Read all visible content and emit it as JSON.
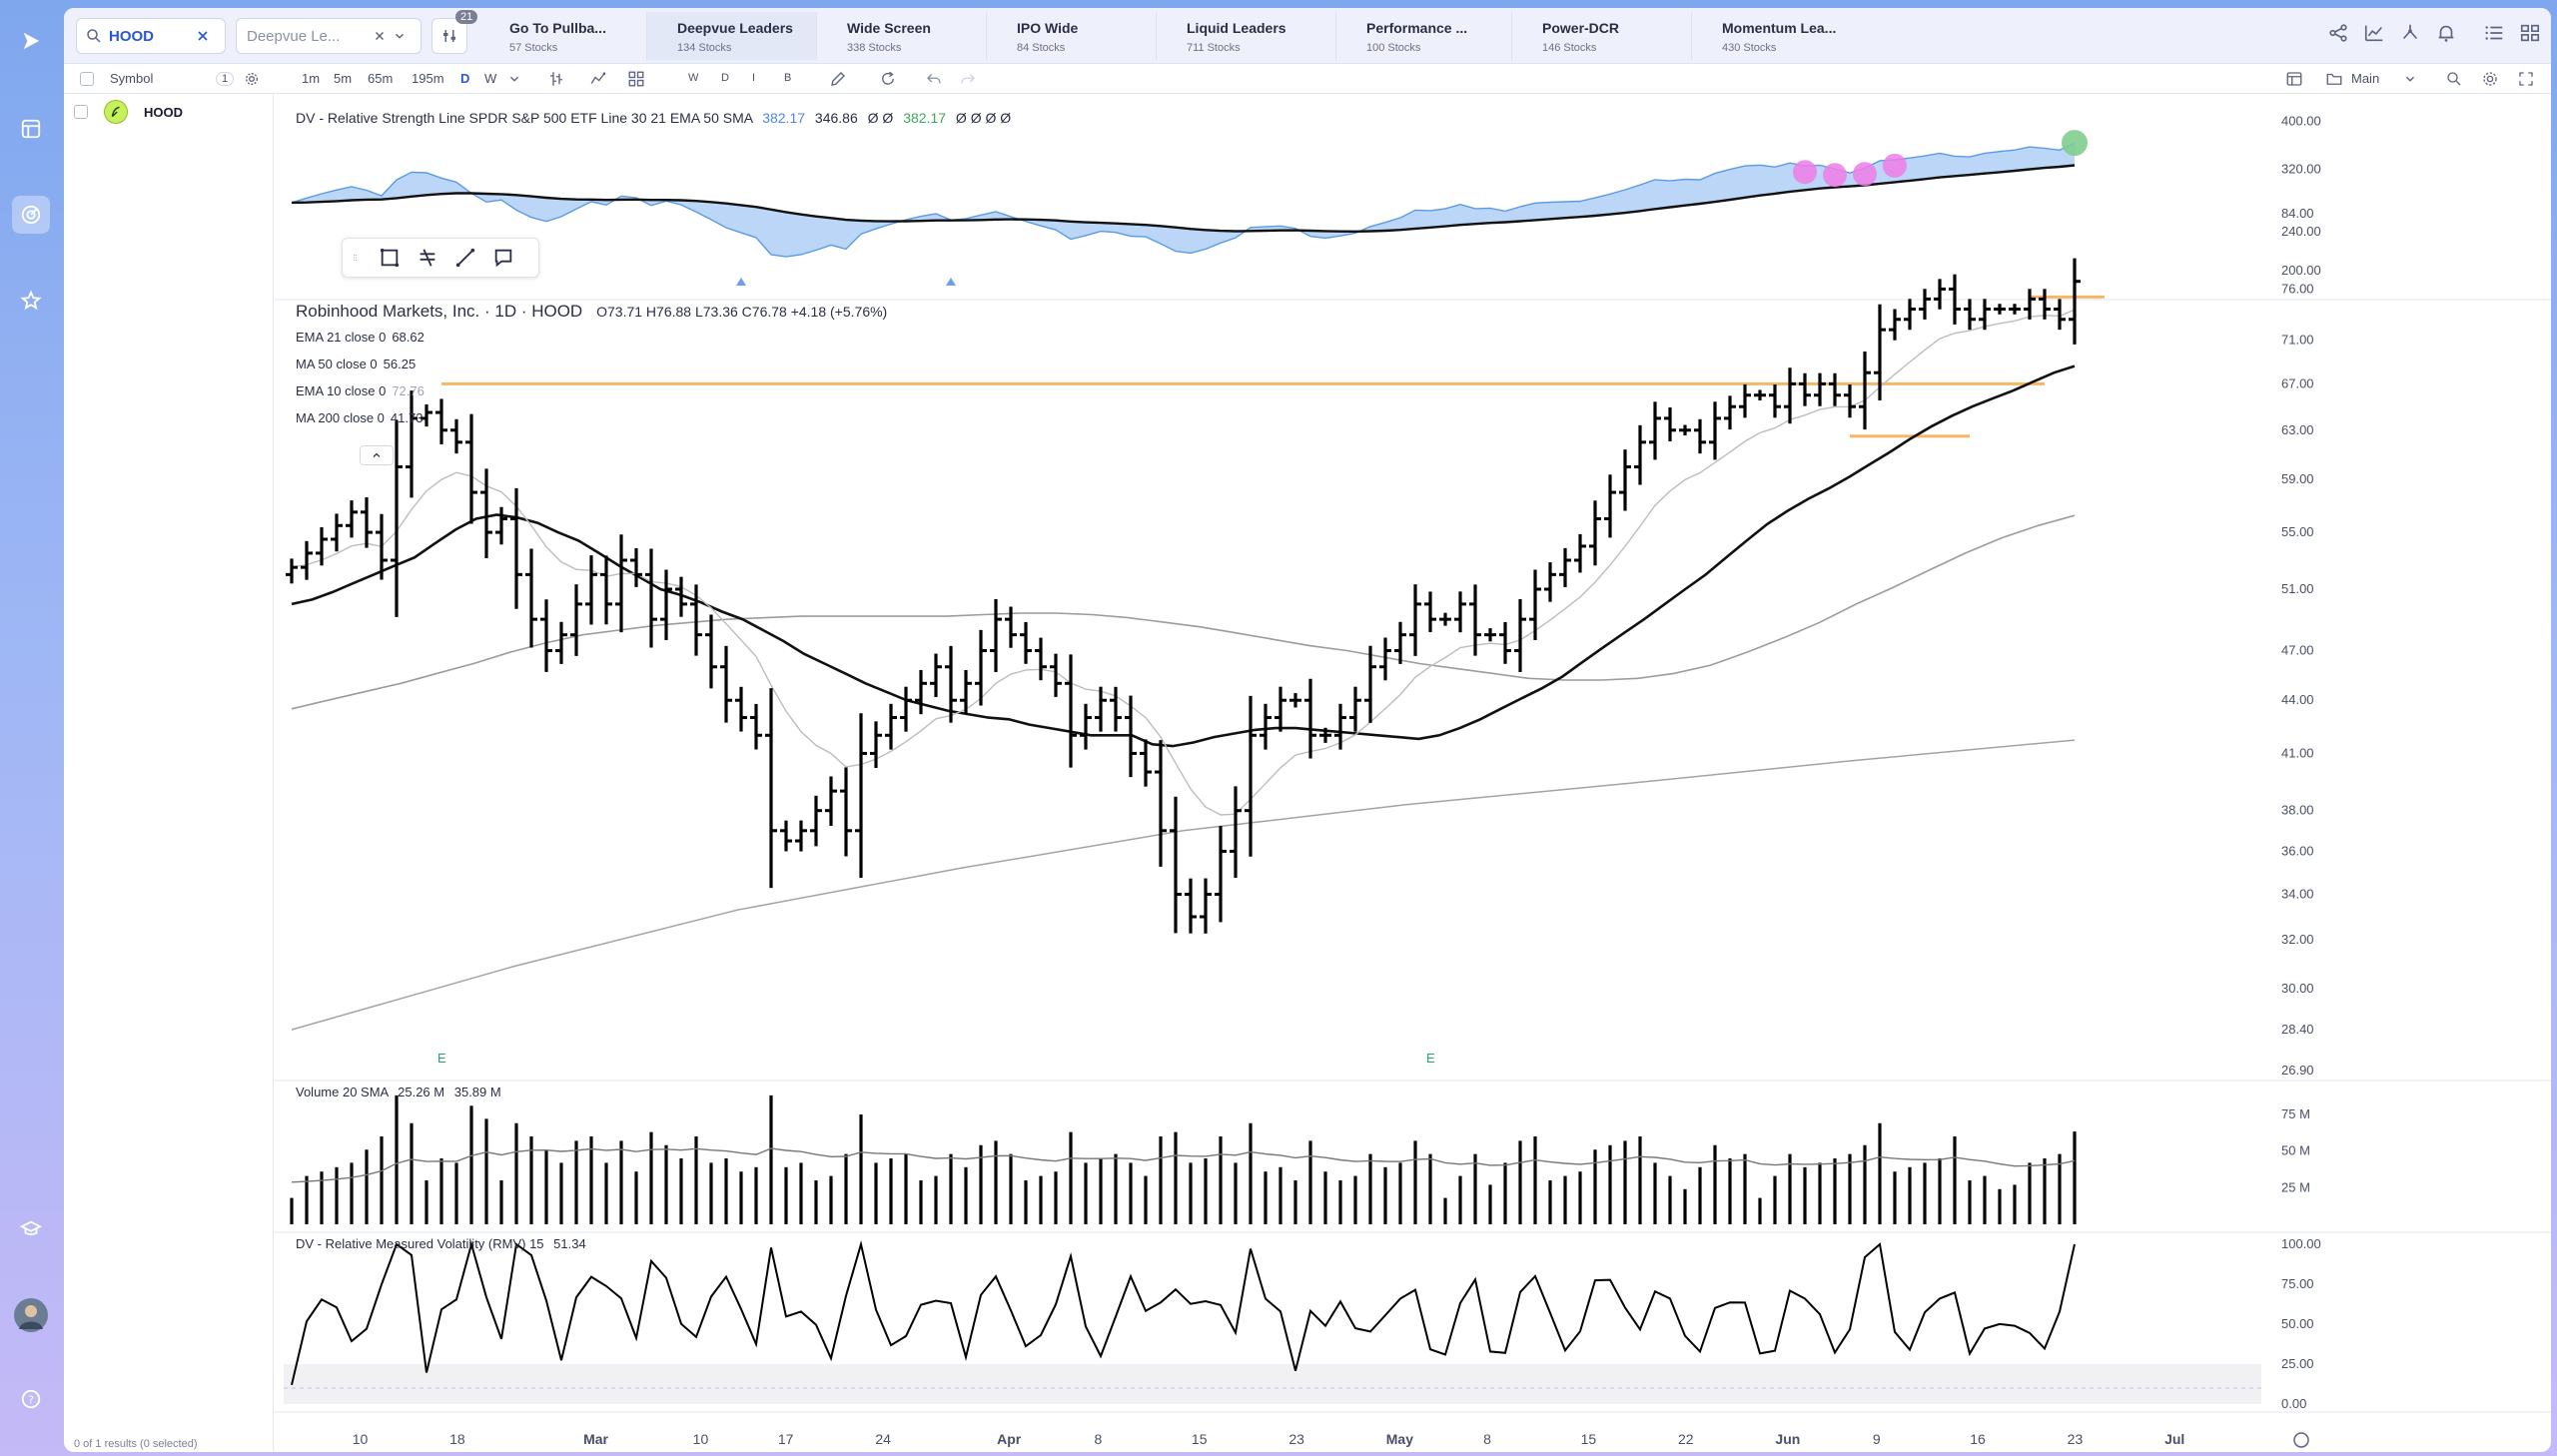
{
  "search": {
    "value": "HOOD"
  },
  "watchlist": {
    "selected": "Deepvue Le..."
  },
  "filter_badge": "21",
  "tabs": [
    {
      "title": "Go To Pullba...",
      "count": "57 Stocks"
    },
    {
      "title": "Deepvue Leaders",
      "count": "134 Stocks"
    },
    {
      "title": "Wide Screen",
      "count": "338 Stocks"
    },
    {
      "title": "IPO Wide",
      "count": "84 Stocks"
    },
    {
      "title": "Liquid Leaders",
      "count": "711 Stocks"
    },
    {
      "title": "Performance ...",
      "count": "100 Stocks"
    },
    {
      "title": "Power-DCR",
      "count": "146 Stocks"
    },
    {
      "title": "Momentum Lea...",
      "count": "430 Stocks"
    }
  ],
  "toolbar": {
    "symbol_label": "Symbol",
    "symbol_count": "1",
    "intervals": [
      "1m",
      "5m",
      "65m",
      "195m",
      "D",
      "W"
    ],
    "active_interval": "D",
    "modes": [
      "W",
      "D",
      "I",
      "B"
    ],
    "layout_label": "Main"
  },
  "symbols": [
    {
      "ticker": "HOOD"
    }
  ],
  "symbol_footer": "0 of 1 results (0 selected)",
  "rs_panel": {
    "title": "DV - Relative Strength Line SPDR S&P 500 ETF Line 30 21 EMA 50 SMA",
    "v1": "382.17",
    "v2": "346.86",
    "v3": "Ø Ø",
    "v4": "382.17",
    "v5": "Ø Ø Ø Ø",
    "axis": [
      "400.00",
      "320.00",
      "240.00",
      "200.00"
    ]
  },
  "price_panel": {
    "title": "Robinhood Markets, Inc. · 1D · HOOD",
    "ohlc": "O73.71  H76.88  L73.36  C76.78  +4.18 (+5.76%)",
    "indicators": [
      {
        "label": "EMA 21 close 0",
        "value": "68.62"
      },
      {
        "label": "MA 50 close 0",
        "value": "56.25"
      },
      {
        "label": "EMA 10 close 0",
        "value": "72.76"
      },
      {
        "label": "MA 200 close 0",
        "value": "41.73"
      }
    ],
    "axis": [
      "84.00",
      "76.00",
      "71.00",
      "67.00",
      "63.00",
      "59.00",
      "55.00",
      "51.00",
      "47.00",
      "44.00",
      "41.00",
      "38.00",
      "36.00",
      "34.00",
      "32.00",
      "30.00",
      "28.40",
      "26.90"
    ],
    "earnings_marker": "E"
  },
  "volume_panel": {
    "title": "Volume 20 SMA",
    "v1": "25.26 M",
    "v2": "35.89 M",
    "axis": [
      "75 M",
      "50 M",
      "25 M"
    ]
  },
  "rmv_panel": {
    "title": "DV - Relative Measured Volatility (RMV) 15",
    "value": "51.34",
    "axis": [
      "100.00",
      "75.00",
      "50.00",
      "25.00",
      "0.00"
    ]
  },
  "x_axis": [
    "10",
    "18",
    "Mar",
    "10",
    "17",
    "24",
    "Apr",
    "8",
    "15",
    "23",
    "May",
    "8",
    "15",
    "22",
    "Jun",
    "9",
    "16",
    "23",
    "Jul"
  ],
  "chart_data": {
    "type": "line",
    "title": "Robinhood Markets, Inc. · 1D · HOOD",
    "closes": [
      52.5,
      53.5,
      54.5,
      55.5,
      56.5,
      55,
      53,
      60,
      64,
      64.5,
      63,
      62,
      58,
      55,
      56,
      52,
      49,
      47,
      48,
      50,
      52,
      50,
      53,
      52,
      49,
      51,
      50,
      48,
      46,
      44,
      43,
      42,
      37,
      36.5,
      37,
      38,
      39,
      37,
      41,
      42,
      43,
      44,
      45,
      46,
      44,
      45,
      47,
      49,
      48,
      47,
      46,
      45,
      42,
      43,
      44,
      43,
      41,
      40,
      37,
      34,
      33,
      34,
      36,
      38,
      42,
      43,
      44,
      44,
      42,
      42,
      43,
      44,
      46,
      47,
      48,
      50,
      49,
      49,
      50,
      48,
      48,
      47,
      49,
      51,
      52,
      53,
      54,
      56,
      58,
      60,
      62,
      64,
      63,
      63,
      62,
      64,
      65,
      66,
      66,
      65,
      67,
      66,
      67,
      66,
      65,
      68,
      72,
      73,
      74,
      75,
      76,
      74,
      73,
      74,
      74,
      74,
      75,
      74,
      73,
      76.78
    ],
    "ema21": [
      50,
      50.3,
      50.8,
      51.4,
      52,
      52.6,
      53.2,
      54.2,
      55.2,
      56,
      56.3,
      56.1,
      55.7,
      55,
      54.4,
      53.5,
      52.6,
      51.8,
      51,
      50.6,
      50.1,
      49.5,
      49,
      48.3,
      47.6,
      46.8,
      46.2,
      45.6,
      45,
      44.5,
      44,
      43.7,
      43.4,
      43.2,
      43,
      42.9,
      42.6,
      42.4,
      42.2,
      42,
      42,
      42,
      41.5,
      41.4,
      41.6,
      41.9,
      42.1,
      42.3,
      42.4,
      42.4,
      42.3,
      42.2,
      42.1,
      42,
      41.9,
      41.8,
      42,
      42.4,
      42.9,
      43.5,
      44.1,
      44.7,
      45.4,
      46.3,
      47.2,
      48.1,
      49,
      50,
      51,
      52,
      53.2,
      54.4,
      55.6,
      56.6,
      57.5,
      58.3,
      59.2,
      60.2,
      61.2,
      62.3,
      63.3,
      64.2,
      65,
      65.7,
      66.4,
      67.2,
      68,
      68.6
    ],
    "ma50": [
      43.5,
      44,
      44.5,
      45,
      45.6,
      46.2,
      46.9,
      47.5,
      48,
      48.3,
      48.6,
      48.8,
      49,
      49.1,
      49.2,
      49.2,
      49.2,
      49.2,
      49.2,
      49.3,
      49.4,
      49.4,
      49.3,
      49.1,
      48.8,
      48.5,
      48.1,
      47.7,
      47.3,
      47,
      46.6,
      46.2,
      45.9,
      45.6,
      45.3,
      45.2,
      45.2,
      45.3,
      45.6,
      46.1,
      46.9,
      47.8,
      48.8,
      50,
      51.1,
      52.3,
      53.5,
      54.6,
      55.5,
      56.25
    ],
    "ma200": [
      28.4,
      30.9,
      33.3,
      35.2,
      37,
      38.3,
      39.4,
      40.6,
      41.73
    ],
    "resistance": 67.0
  }
}
